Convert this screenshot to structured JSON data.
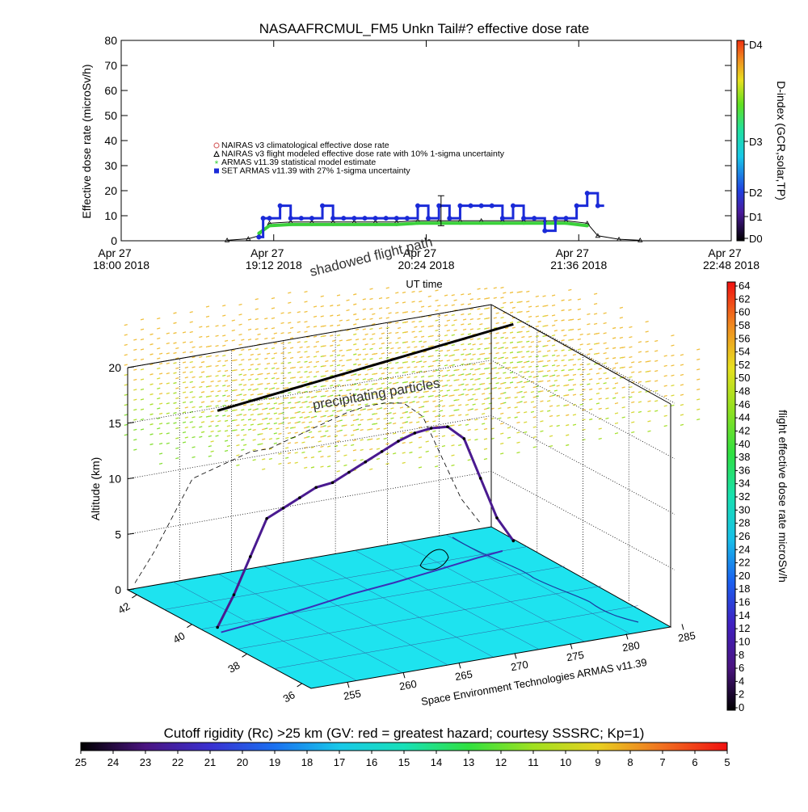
{
  "chart_data": [
    {
      "type": "scatter",
      "title": "NASAAFRCMUL_FM5 Unkn Tail#? effective dose rate",
      "ylabel": "Effective dose rate (microSv/h)",
      "xlabel": "UT time",
      "ylim": [
        0,
        80
      ],
      "yticks": [
        "0",
        "10",
        "20",
        "30",
        "40",
        "50",
        "60",
        "70",
        "80"
      ],
      "xticks": [
        {
          "date": "Apr 27",
          "time": "18:00 2018"
        },
        {
          "date": "Apr 27",
          "time": "19:12 2018"
        },
        {
          "date": "Apr 27",
          "time": "20:24 2018"
        },
        {
          "date": "Apr 27",
          "time": "21:36 2018"
        },
        {
          "date": "Apr 27",
          "time": "22:48 2018"
        }
      ],
      "xlim": [
        "18:00",
        "22:48"
      ],
      "legend": {
        "placement": "left-middle",
        "entries": [
          {
            "label": "NAIRAS v3 climatological effective dose rate",
            "color": "#d86a6a",
            "marker": "circle"
          },
          {
            "label": "NAIRAS v3 flight modeled effective dose rate with 10% 1-sigma uncertainty",
            "color": "#000000",
            "marker": "triangle"
          },
          {
            "label": "ARMAS v11.39 statistical model estimate",
            "color": "#3ad13a",
            "marker": "asterisk"
          },
          {
            "label": "SET ARMAS v11.39 with 27% 1-sigma uncertainty",
            "color": "#1a2ad8",
            "marker": "square"
          }
        ]
      },
      "series": [
        {
          "name": "SET ARMAS v11.39 with 27% 1-sigma uncertainty",
          "x_minutes_note": "",
          "x": [
            "19:05",
            "19:07",
            "19:10",
            "19:15",
            "19:20",
            "19:25",
            "19:30",
            "19:35",
            "19:40",
            "19:45",
            "19:50",
            "19:55",
            "20:00",
            "20:05",
            "20:10",
            "20:15",
            "20:20",
            "20:25",
            "20:30",
            "20:35",
            "20:40",
            "20:45",
            "20:50",
            "20:55",
            "21:00",
            "21:05",
            "21:10",
            "21:15",
            "21:20",
            "21:25",
            "21:30",
            "21:35",
            "21:40",
            "21:45"
          ],
          "y": [
            1.5,
            9,
            9,
            14,
            9,
            9,
            9,
            14,
            9,
            9,
            9,
            9,
            9,
            9,
            9,
            9,
            14,
            9,
            14,
            9,
            14,
            14,
            14,
            14,
            9,
            14,
            9,
            9,
            4,
            9,
            9,
            14,
            19,
            14
          ]
        },
        {
          "name": "ARMAS v11.39 statistical model estimate",
          "x": [
            "19:05",
            "19:10",
            "19:20",
            "19:30",
            "19:40",
            "19:50",
            "20:00",
            "20:10",
            "20:20",
            "20:30",
            "20:40",
            "20:50",
            "21:00",
            "21:10",
            "21:20",
            "21:30",
            "21:40"
          ],
          "y": [
            3,
            6,
            6.5,
            6.5,
            6.5,
            6.5,
            6.5,
            6.5,
            7,
            7,
            7,
            7,
            7,
            7,
            7,
            7,
            6
          ]
        },
        {
          "name": "NAIRAS v3 flight modeled effective dose rate with 10% 1-sigma uncertainty",
          "x": [
            "18:50",
            "19:00",
            "19:05",
            "19:10",
            "19:20",
            "19:30",
            "19:40",
            "19:50",
            "20:00",
            "20:10",
            "20:20",
            "20:30",
            "20:40",
            "20:50",
            "21:00",
            "21:10",
            "21:20",
            "21:30",
            "21:40",
            "21:45",
            "21:55",
            "22:05"
          ],
          "y": [
            0.2,
            0.8,
            2,
            7,
            7.5,
            7.5,
            7.5,
            7.5,
            7.5,
            7.5,
            8,
            8,
            8,
            8,
            8,
            8,
            8,
            8,
            7,
            2,
            0.6,
            0.2
          ]
        }
      ]
    },
    {
      "type": "heatmap",
      "subtype": "3d-trajectory",
      "ylabel": "Altitude (km)",
      "zticks": [
        "0",
        "5",
        "10",
        "15",
        "20"
      ],
      "latitude_ticks": [
        "42",
        "40",
        "38",
        "36"
      ],
      "longitude_ticks": [
        "255",
        "260",
        "265",
        "270",
        "275",
        "280",
        "285"
      ],
      "annotations": [
        "shadowed flight path",
        "precipitating particles"
      ],
      "credit": "Space Environment Technologies ARMAS v11.39",
      "flight_altitude_km": [
        0.5,
        3,
        6,
        9,
        9.5,
        10,
        10.5,
        10.5,
        11,
        11.5,
        12,
        12.5,
        12.8,
        12.8,
        12.5,
        11,
        7,
        3,
        0.5
      ]
    }
  ],
  "colorbars": {
    "dindex": {
      "label": "D-index (GCR,solar,TP)",
      "ticks": [
        "D0",
        "D1",
        "D2",
        "D3",
        "D4"
      ]
    },
    "dose": {
      "label": "flight effective dose rate microSv/h",
      "ticks": [
        "0",
        "2",
        "4",
        "6",
        "8",
        "10",
        "12",
        "14",
        "16",
        "18",
        "20",
        "22",
        "24",
        "26",
        "28",
        "30",
        "32",
        "34",
        "36",
        "38",
        "40",
        "42",
        "44",
        "46",
        "48",
        "50",
        "52",
        "54",
        "56",
        "58",
        "60",
        "62",
        "64"
      ]
    },
    "rigidity": {
      "label": "Cutoff rigidity (Rc) >25 km (GV: red = greatest hazard; courtesy SSSRC; Kp=1)",
      "ticks": [
        "25",
        "24",
        "23",
        "22",
        "21",
        "20",
        "19",
        "18",
        "17",
        "16",
        "15",
        "14",
        "13",
        "12",
        "11",
        "10",
        "9",
        "8",
        "7",
        "6",
        "5"
      ]
    }
  },
  "colors": {
    "set_armas": "#1a2ad8",
    "armas_model": "#3ad13a",
    "nairas": "#000000",
    "map_floor": "#1ee3ef"
  }
}
